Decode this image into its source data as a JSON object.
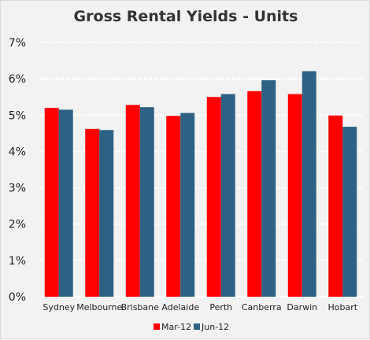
{
  "chart_data": {
    "type": "bar",
    "title": "Gross Rental Yields - Units",
    "xlabel": "",
    "ylabel": "",
    "categories": [
      "Sydney",
      "Melbourne",
      "Brisbane",
      "Adelaide",
      "Perth",
      "Canberra",
      "Darwin",
      "Hobart"
    ],
    "series": [
      {
        "name": "Mar-12",
        "color": "#ff0000",
        "values": [
          5.2,
          4.62,
          5.28,
          4.98,
          5.5,
          5.66,
          5.58,
          4.99
        ]
      },
      {
        "name": "Jun-12",
        "color": "#2e6285",
        "values": [
          5.15,
          4.59,
          5.22,
          5.06,
          5.58,
          5.96,
          6.21,
          4.68
        ]
      }
    ],
    "ylim": [
      0,
      7
    ],
    "yticks": [
      "0%",
      "1%",
      "2%",
      "3%",
      "4%",
      "5%",
      "6%",
      "7%"
    ],
    "grid": true,
    "legend_position": "bottom-center"
  }
}
